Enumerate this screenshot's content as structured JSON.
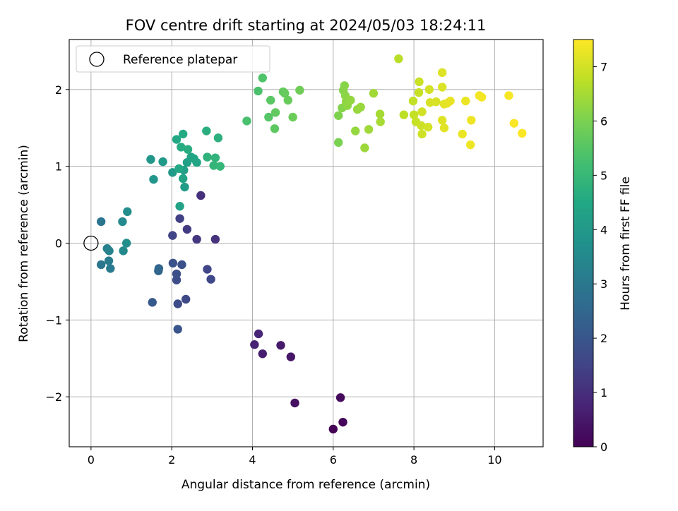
{
  "chart_data": {
    "type": "scatter",
    "title": "FOV centre drift starting at 2024/05/03 18:24:11",
    "xlabel": "Angular distance from reference (arcmin)",
    "ylabel": "Rotation from reference (arcmin)",
    "xlim": [
      -0.54,
      11.2
    ],
    "ylim": [
      -2.65,
      2.65
    ],
    "x_ticks": [
      0,
      2,
      4,
      6,
      8,
      10
    ],
    "x_tick_labels": [
      "0",
      "2",
      "4",
      "6",
      "8",
      "10"
    ],
    "y_ticks": [
      -2,
      -1,
      0,
      1,
      2
    ],
    "y_tick_labels": [
      "−2",
      "−1",
      "0",
      "1",
      "2"
    ],
    "grid": true,
    "legend": {
      "position": "upper-left",
      "entries": [
        "Reference platepar"
      ]
    },
    "reference_point": {
      "x": 0,
      "y": 0,
      "marker": "open-circle"
    },
    "colorbar": {
      "label": "Hours from first FF file",
      "range": [
        0,
        7.5
      ],
      "ticks": [
        0,
        1,
        2,
        3,
        4,
        5,
        6,
        7
      ],
      "tick_labels": [
        "0",
        "1",
        "2",
        "3",
        "4",
        "5",
        "6",
        "7"
      ],
      "colormap": "viridis"
    },
    "points": [
      [
        6.0,
        -2.42,
        0.05
      ],
      [
        6.24,
        -2.33,
        0.12
      ],
      [
        6.18,
        -2.01,
        0.2
      ],
      [
        5.05,
        -2.08,
        0.35
      ],
      [
        4.95,
        -1.48,
        0.45
      ],
      [
        4.7,
        -1.33,
        0.55
      ],
      [
        4.25,
        -1.44,
        0.62
      ],
      [
        4.05,
        -1.32,
        0.7
      ],
      [
        4.15,
        -1.18,
        0.78
      ],
      [
        2.72,
        0.62,
        1.0
      ],
      [
        3.08,
        0.05,
        1.1
      ],
      [
        2.62,
        0.05,
        1.2
      ],
      [
        2.38,
        0.18,
        1.3
      ],
      [
        2.2,
        0.32,
        1.4
      ],
      [
        2.02,
        0.1,
        1.5
      ],
      [
        2.88,
        -0.34,
        1.55
      ],
      [
        2.97,
        -0.47,
        1.6
      ],
      [
        2.35,
        -0.73,
        1.65
      ],
      [
        2.15,
        -0.79,
        1.7
      ],
      [
        2.12,
        -0.48,
        1.75
      ],
      [
        2.12,
        -0.4,
        1.8
      ],
      [
        2.25,
        -0.28,
        1.85
      ],
      [
        2.03,
        -0.26,
        1.9
      ],
      [
        2.15,
        -1.12,
        1.98
      ],
      [
        1.52,
        -0.77,
        2.1
      ],
      [
        1.68,
        -0.33,
        2.4
      ],
      [
        1.67,
        -0.36,
        2.5
      ],
      [
        0.25,
        0.28,
        2.9
      ],
      [
        0.25,
        -0.28,
        2.95
      ],
      [
        0.48,
        -0.33,
        3.05
      ],
      [
        0.44,
        -0.23,
        3.1
      ],
      [
        0.4,
        -0.07,
        3.2
      ],
      [
        0.45,
        -0.1,
        3.3
      ],
      [
        0.8,
        -0.1,
        3.5
      ],
      [
        0.78,
        0.28,
        3.55
      ],
      [
        0.88,
        0.0,
        3.65
      ],
      [
        0.9,
        0.41,
        3.7
      ],
      [
        1.55,
        0.83,
        3.9
      ],
      [
        1.48,
        1.09,
        3.95
      ],
      [
        1.78,
        1.06,
        4.0
      ],
      [
        2.02,
        0.92,
        4.05
      ],
      [
        2.32,
        0.73,
        4.1
      ],
      [
        2.2,
        0.48,
        4.3
      ],
      [
        2.28,
        0.84,
        4.35
      ],
      [
        2.3,
        0.95,
        4.2
      ],
      [
        2.38,
        1.05,
        4.25
      ],
      [
        2.48,
        1.12,
        4.35
      ],
      [
        2.55,
        1.1,
        4.4
      ],
      [
        2.62,
        1.05,
        4.45
      ],
      [
        2.18,
        0.97,
        4.5
      ],
      [
        2.12,
        1.35,
        4.5
      ],
      [
        2.28,
        1.42,
        4.55
      ],
      [
        2.23,
        1.25,
        4.6
      ],
      [
        2.4,
        1.22,
        4.65
      ],
      [
        2.86,
        1.46,
        4.7
      ],
      [
        3.15,
        1.37,
        4.75
      ],
      [
        2.88,
        1.12,
        4.8
      ],
      [
        3.08,
        1.11,
        4.85
      ],
      [
        3.04,
        1.01,
        4.9
      ],
      [
        3.2,
        1.0,
        4.95
      ],
      [
        3.86,
        1.59,
        5.3
      ],
      [
        4.14,
        1.98,
        5.35
      ],
      [
        4.25,
        2.15,
        5.4
      ],
      [
        4.4,
        1.64,
        5.5
      ],
      [
        4.45,
        1.86,
        5.55
      ],
      [
        4.55,
        1.49,
        5.6
      ],
      [
        4.57,
        1.7,
        5.65
      ],
      [
        4.76,
        1.97,
        5.7
      ],
      [
        4.8,
        1.95,
        5.72
      ],
      [
        4.88,
        1.86,
        5.75
      ],
      [
        5.0,
        1.64,
        5.8
      ],
      [
        5.17,
        1.99,
        5.85
      ],
      [
        6.13,
        1.31,
        6.0
      ],
      [
        6.13,
        1.66,
        6.05
      ],
      [
        6.22,
        1.76,
        6.1
      ],
      [
        6.25,
        1.99,
        6.12
      ],
      [
        6.28,
        2.05,
        6.15
      ],
      [
        6.3,
        1.92,
        6.2
      ],
      [
        6.32,
        1.84,
        6.22
      ],
      [
        6.35,
        1.79,
        6.25
      ],
      [
        6.43,
        1.86,
        6.28
      ],
      [
        6.55,
        1.46,
        6.3
      ],
      [
        6.6,
        1.74,
        6.32
      ],
      [
        6.68,
        1.77,
        6.35
      ],
      [
        6.78,
        1.24,
        6.38
      ],
      [
        6.88,
        1.48,
        6.42
      ],
      [
        7.0,
        1.95,
        6.45
      ],
      [
        7.16,
        1.68,
        6.48
      ],
      [
        7.17,
        1.58,
        6.5
      ],
      [
        7.62,
        2.4,
        6.7
      ],
      [
        7.75,
        1.67,
        6.75
      ],
      [
        7.98,
        1.85,
        6.8
      ],
      [
        8.0,
        1.67,
        6.82
      ],
      [
        8.05,
        1.58,
        6.85
      ],
      [
        8.12,
        1.96,
        6.88
      ],
      [
        8.13,
        2.1,
        6.9
      ],
      [
        8.18,
        1.53,
        6.92
      ],
      [
        8.2,
        1.42,
        6.95
      ],
      [
        8.2,
        1.71,
        6.97
      ],
      [
        8.35,
        1.51,
        7.0
      ],
      [
        8.38,
        2.0,
        7.02
      ],
      [
        8.4,
        1.83,
        7.05
      ],
      [
        8.55,
        1.84,
        7.07
      ],
      [
        8.7,
        2.03,
        7.1
      ],
      [
        8.7,
        2.22,
        7.12
      ],
      [
        8.7,
        1.6,
        7.15
      ],
      [
        8.75,
        1.5,
        7.17
      ],
      [
        8.75,
        1.81,
        7.2
      ],
      [
        8.82,
        1.82,
        7.22
      ],
      [
        8.9,
        1.85,
        7.25
      ],
      [
        9.2,
        1.42,
        7.28
      ],
      [
        9.28,
        1.85,
        7.3
      ],
      [
        9.4,
        1.28,
        7.32
      ],
      [
        9.42,
        1.6,
        7.35
      ],
      [
        9.62,
        1.92,
        7.37
      ],
      [
        9.68,
        1.9,
        7.4
      ],
      [
        10.35,
        1.92,
        7.42
      ],
      [
        10.48,
        1.56,
        7.45
      ],
      [
        10.68,
        1.43,
        7.48
      ]
    ]
  }
}
